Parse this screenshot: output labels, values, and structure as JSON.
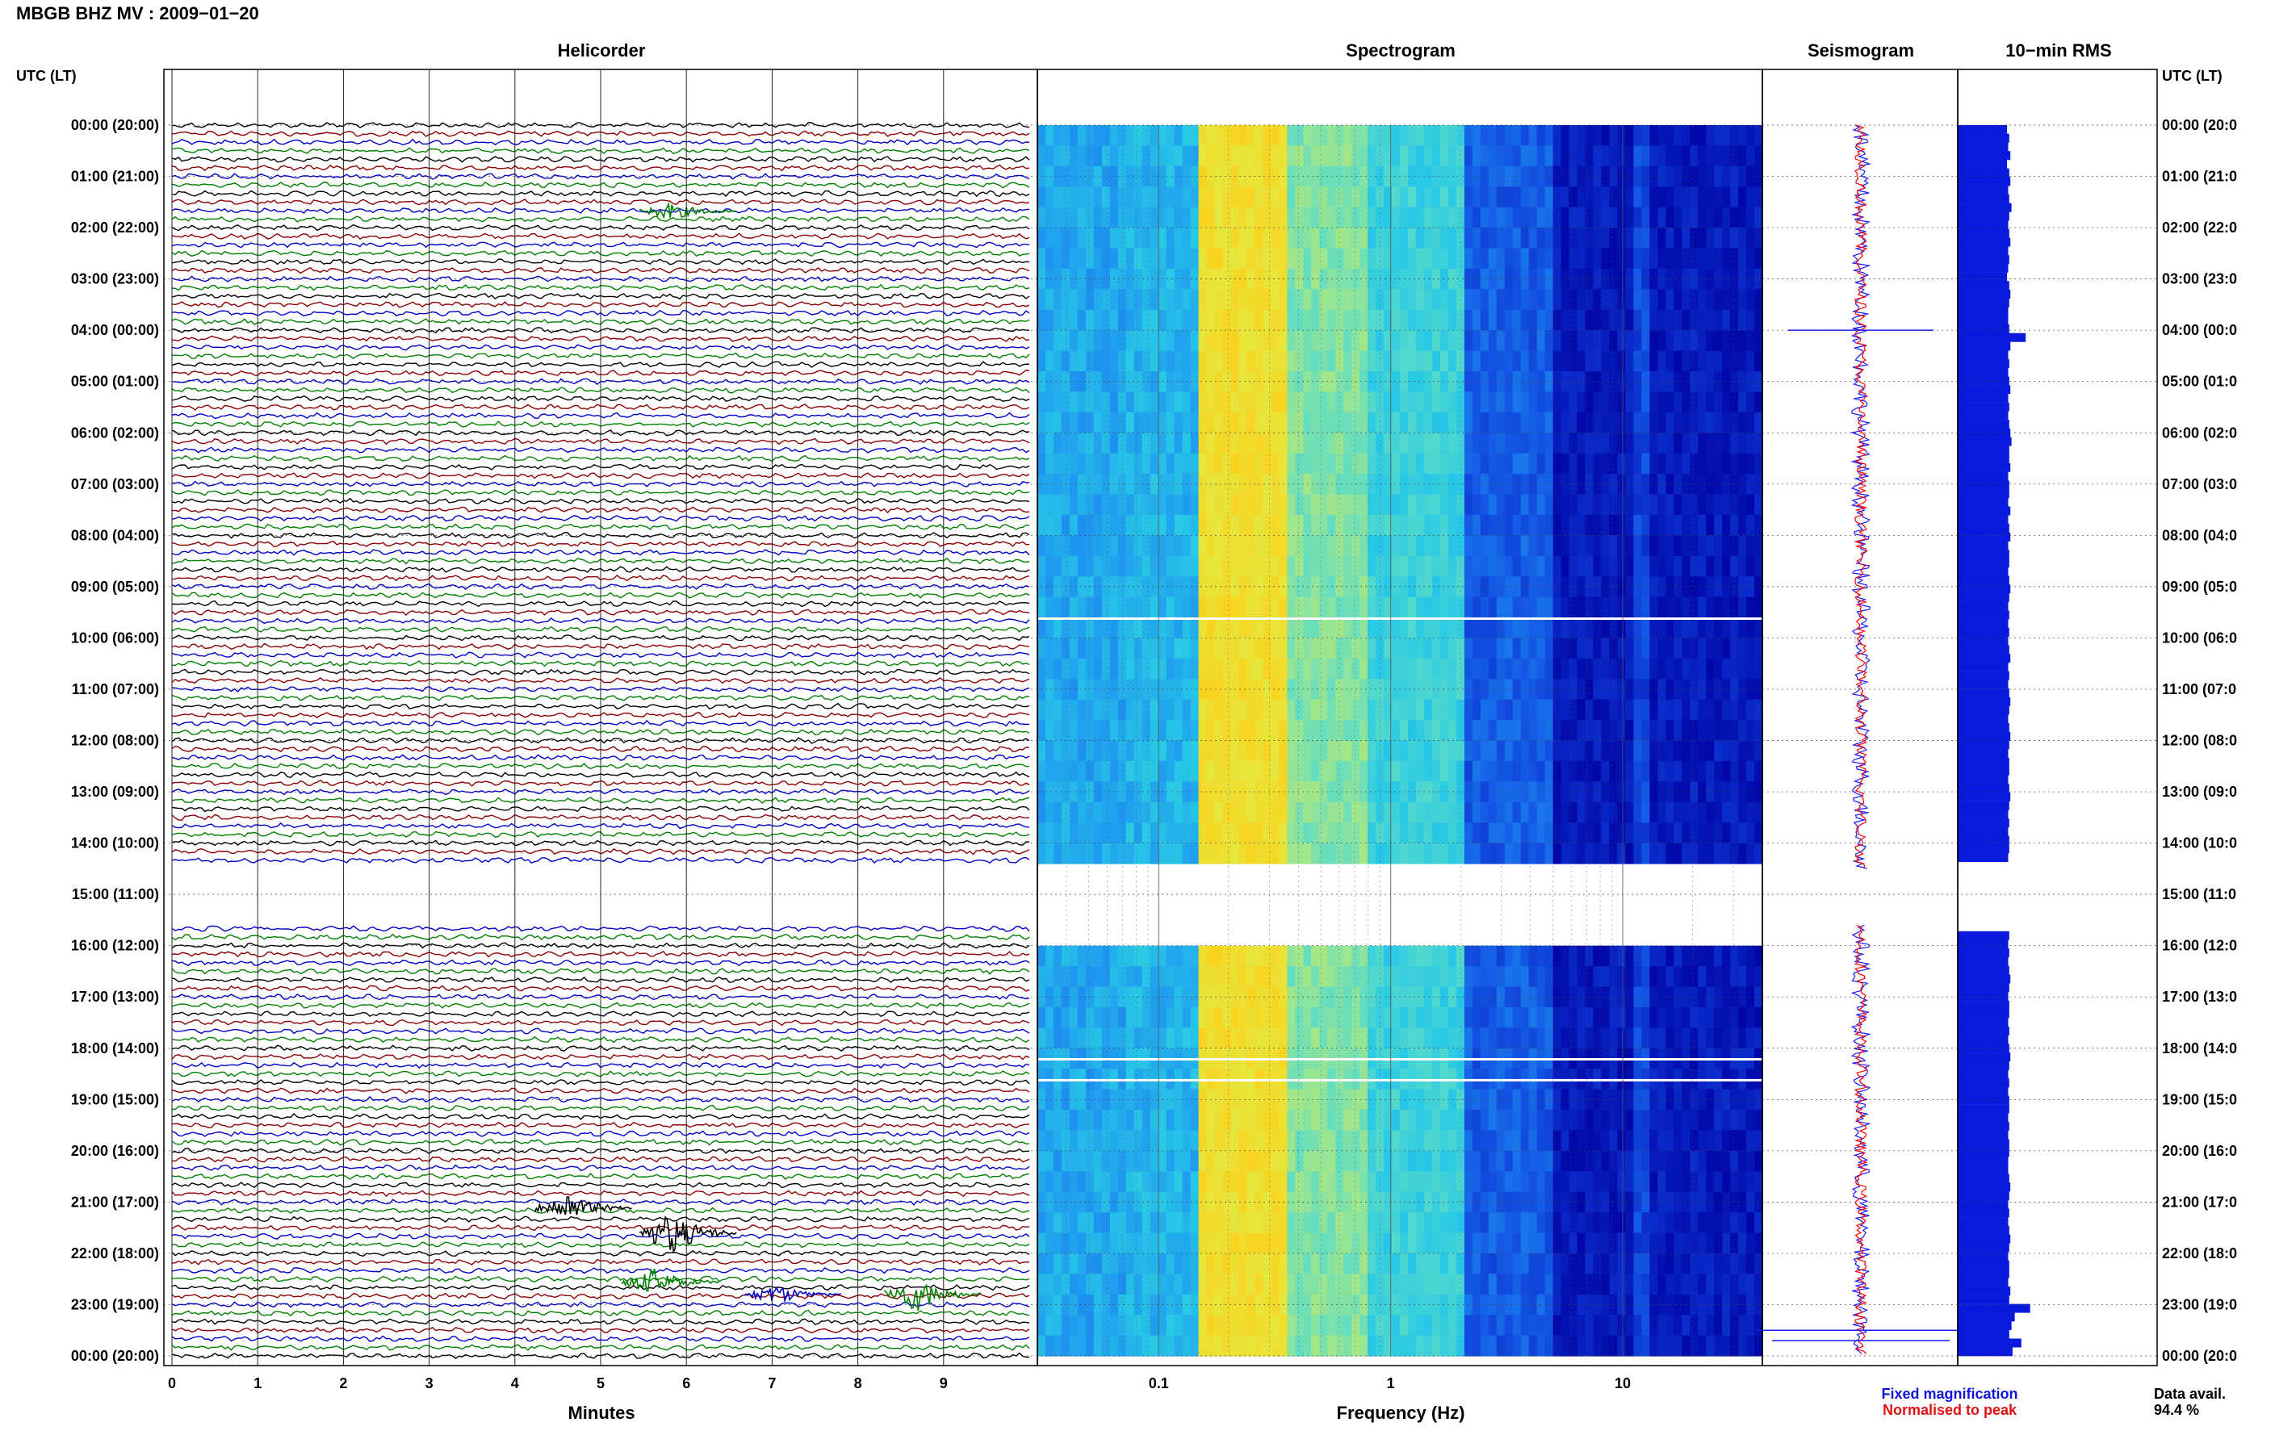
{
  "title": "MBGB BHZ MV : 2009−01−20",
  "panels": {
    "helicorder": "Helicorder",
    "spectrogram": "Spectrogram",
    "seismogram": "Seismogram",
    "rms": "10−min RMS"
  },
  "time_axis_label": "UTC (LT)",
  "hour_labels": [
    "00:00 (20:00)",
    "01:00 (21:00)",
    "02:00 (22:00)",
    "03:00 (23:00)",
    "04:00 (00:00)",
    "05:00 (01:00)",
    "06:00 (02:00)",
    "07:00 (03:00)",
    "08:00 (04:00)",
    "09:00 (05:00)",
    "10:00 (06:00)",
    "11:00 (07:00)",
    "12:00 (08:00)",
    "13:00 (09:00)",
    "14:00 (10:00)",
    "15:00 (11:00)",
    "16:00 (12:00)",
    "17:00 (13:00)",
    "18:00 (14:00)",
    "19:00 (15:00)",
    "20:00 (16:00)",
    "21:00 (17:00)",
    "22:00 (18:00)",
    "23:00 (19:00)",
    "00:00 (20:00)"
  ],
  "right_hour_labels": [
    "00:00 (20:0",
    "01:00 (21:0",
    "02:00 (22:0",
    "03:00 (23:0",
    "04:00 (00:0",
    "05:00 (01:0",
    "06:00 (02:0",
    "07:00 (03:0",
    "08:00 (04:0",
    "09:00 (05:0",
    "10:00 (06:0",
    "11:00 (07:0",
    "12:00 (08:0",
    "13:00 (09:0",
    "14:00 (10:0",
    "15:00 (11:0",
    "16:00 (12:0",
    "17:00 (13:0",
    "18:00 (14:0",
    "19:00 (15:0",
    "20:00 (16:0",
    "21:00 (17:0",
    "22:00 (18:0",
    "23:00 (19:0",
    "00:00 (20:0"
  ],
  "minutes_label": "Minutes",
  "minute_ticks": [
    "0",
    "1",
    "2",
    "3",
    "4",
    "5",
    "6",
    "7",
    "8",
    "9"
  ],
  "frequency_label": "Frequency (Hz)",
  "frequency_ticks": [
    "0.1",
    "1",
    "10"
  ],
  "legend": {
    "fixed": "Fixed magnification",
    "normalised": "Normalised to peak"
  },
  "data_availability": {
    "label": "Data avail.",
    "value": "94.4 %"
  },
  "colors": {
    "trace_cycle": [
      "#000000",
      "#8b0000",
      "#0000c8",
      "#008000"
    ],
    "seismogram_fixed": "#1a1aff",
    "seismogram_normalised": "#ff0000",
    "rms_bar": "#0a1adc"
  },
  "chart_data": {
    "type": "heatmap",
    "time_range_utc_hours": [
      0,
      24
    ],
    "data_gap_utc_hours": [
      14.5,
      15.6
    ],
    "helicorder_minutes_range": [
      0,
      10
    ],
    "spectrogram_frequency_log_range_hz": [
      0.03,
      40
    ],
    "spectrogram_features": [
      {
        "frequency_hz": 0.2,
        "description_level": "high"
      },
      {
        "frequency_hz": 12,
        "description_level": "band"
      }
    ],
    "rms_10min": [
      0.45,
      0.47,
      0.46,
      0.48,
      0.45,
      0.47,
      0.48,
      0.46,
      0.47,
      0.49,
      0.47,
      0.46,
      0.47,
      0.48,
      0.46,
      0.47,
      0.46,
      0.45,
      0.47,
      0.48,
      0.47,
      0.46,
      0.46,
      0.47,
      0.62,
      0.48,
      0.46,
      0.47,
      0.46,
      0.47,
      0.48,
      0.46,
      0.47,
      0.46,
      0.47,
      0.48,
      0.49,
      0.47,
      0.47,
      0.48,
      0.46,
      0.47,
      0.47,
      0.46,
      0.48,
      0.46,
      0.47,
      0.48,
      0.46,
      0.47,
      0.47,
      0.46,
      0.47,
      0.48,
      0.47,
      0.46,
      0.47,
      0.46,
      0.47,
      0.46,
      0.47,
      0.48,
      0.46,
      0.47,
      0.46,
      0.47,
      0.48,
      0.47,
      0.46,
      0.47,
      0.48,
      0.47,
      0.46,
      0.47,
      0.47,
      0.46,
      0.47,
      0.48,
      0.47,
      0.46,
      0.47,
      0.46,
      0.47,
      0.47,
      0.46,
      0.47,
      0.46,
      0.47,
      0.47,
      0.46,
      0.46,
      0.47,
      0.48,
      0.47,
      0.46,
      0.47,
      0.46,
      0.47,
      0.48,
      0.47,
      0.46,
      0.47,
      0.47,
      0.46,
      0.47,
      0.46,
      0.47,
      0.48,
      0.47,
      0.46,
      0.47,
      0.46,
      0.47,
      0.47,
      0.46,
      0.47,
      0.46,
      0.47,
      0.47,
      0.46,
      0.46,
      0.47,
      0.48,
      0.47,
      0.46,
      0.47,
      0.46,
      0.47,
      0.48,
      0.47,
      0.46,
      0.47,
      0.47,
      0.46,
      0.48,
      0.47,
      0.66,
      0.52,
      0.49,
      0.47,
      0.58,
      0.5
    ]
  }
}
